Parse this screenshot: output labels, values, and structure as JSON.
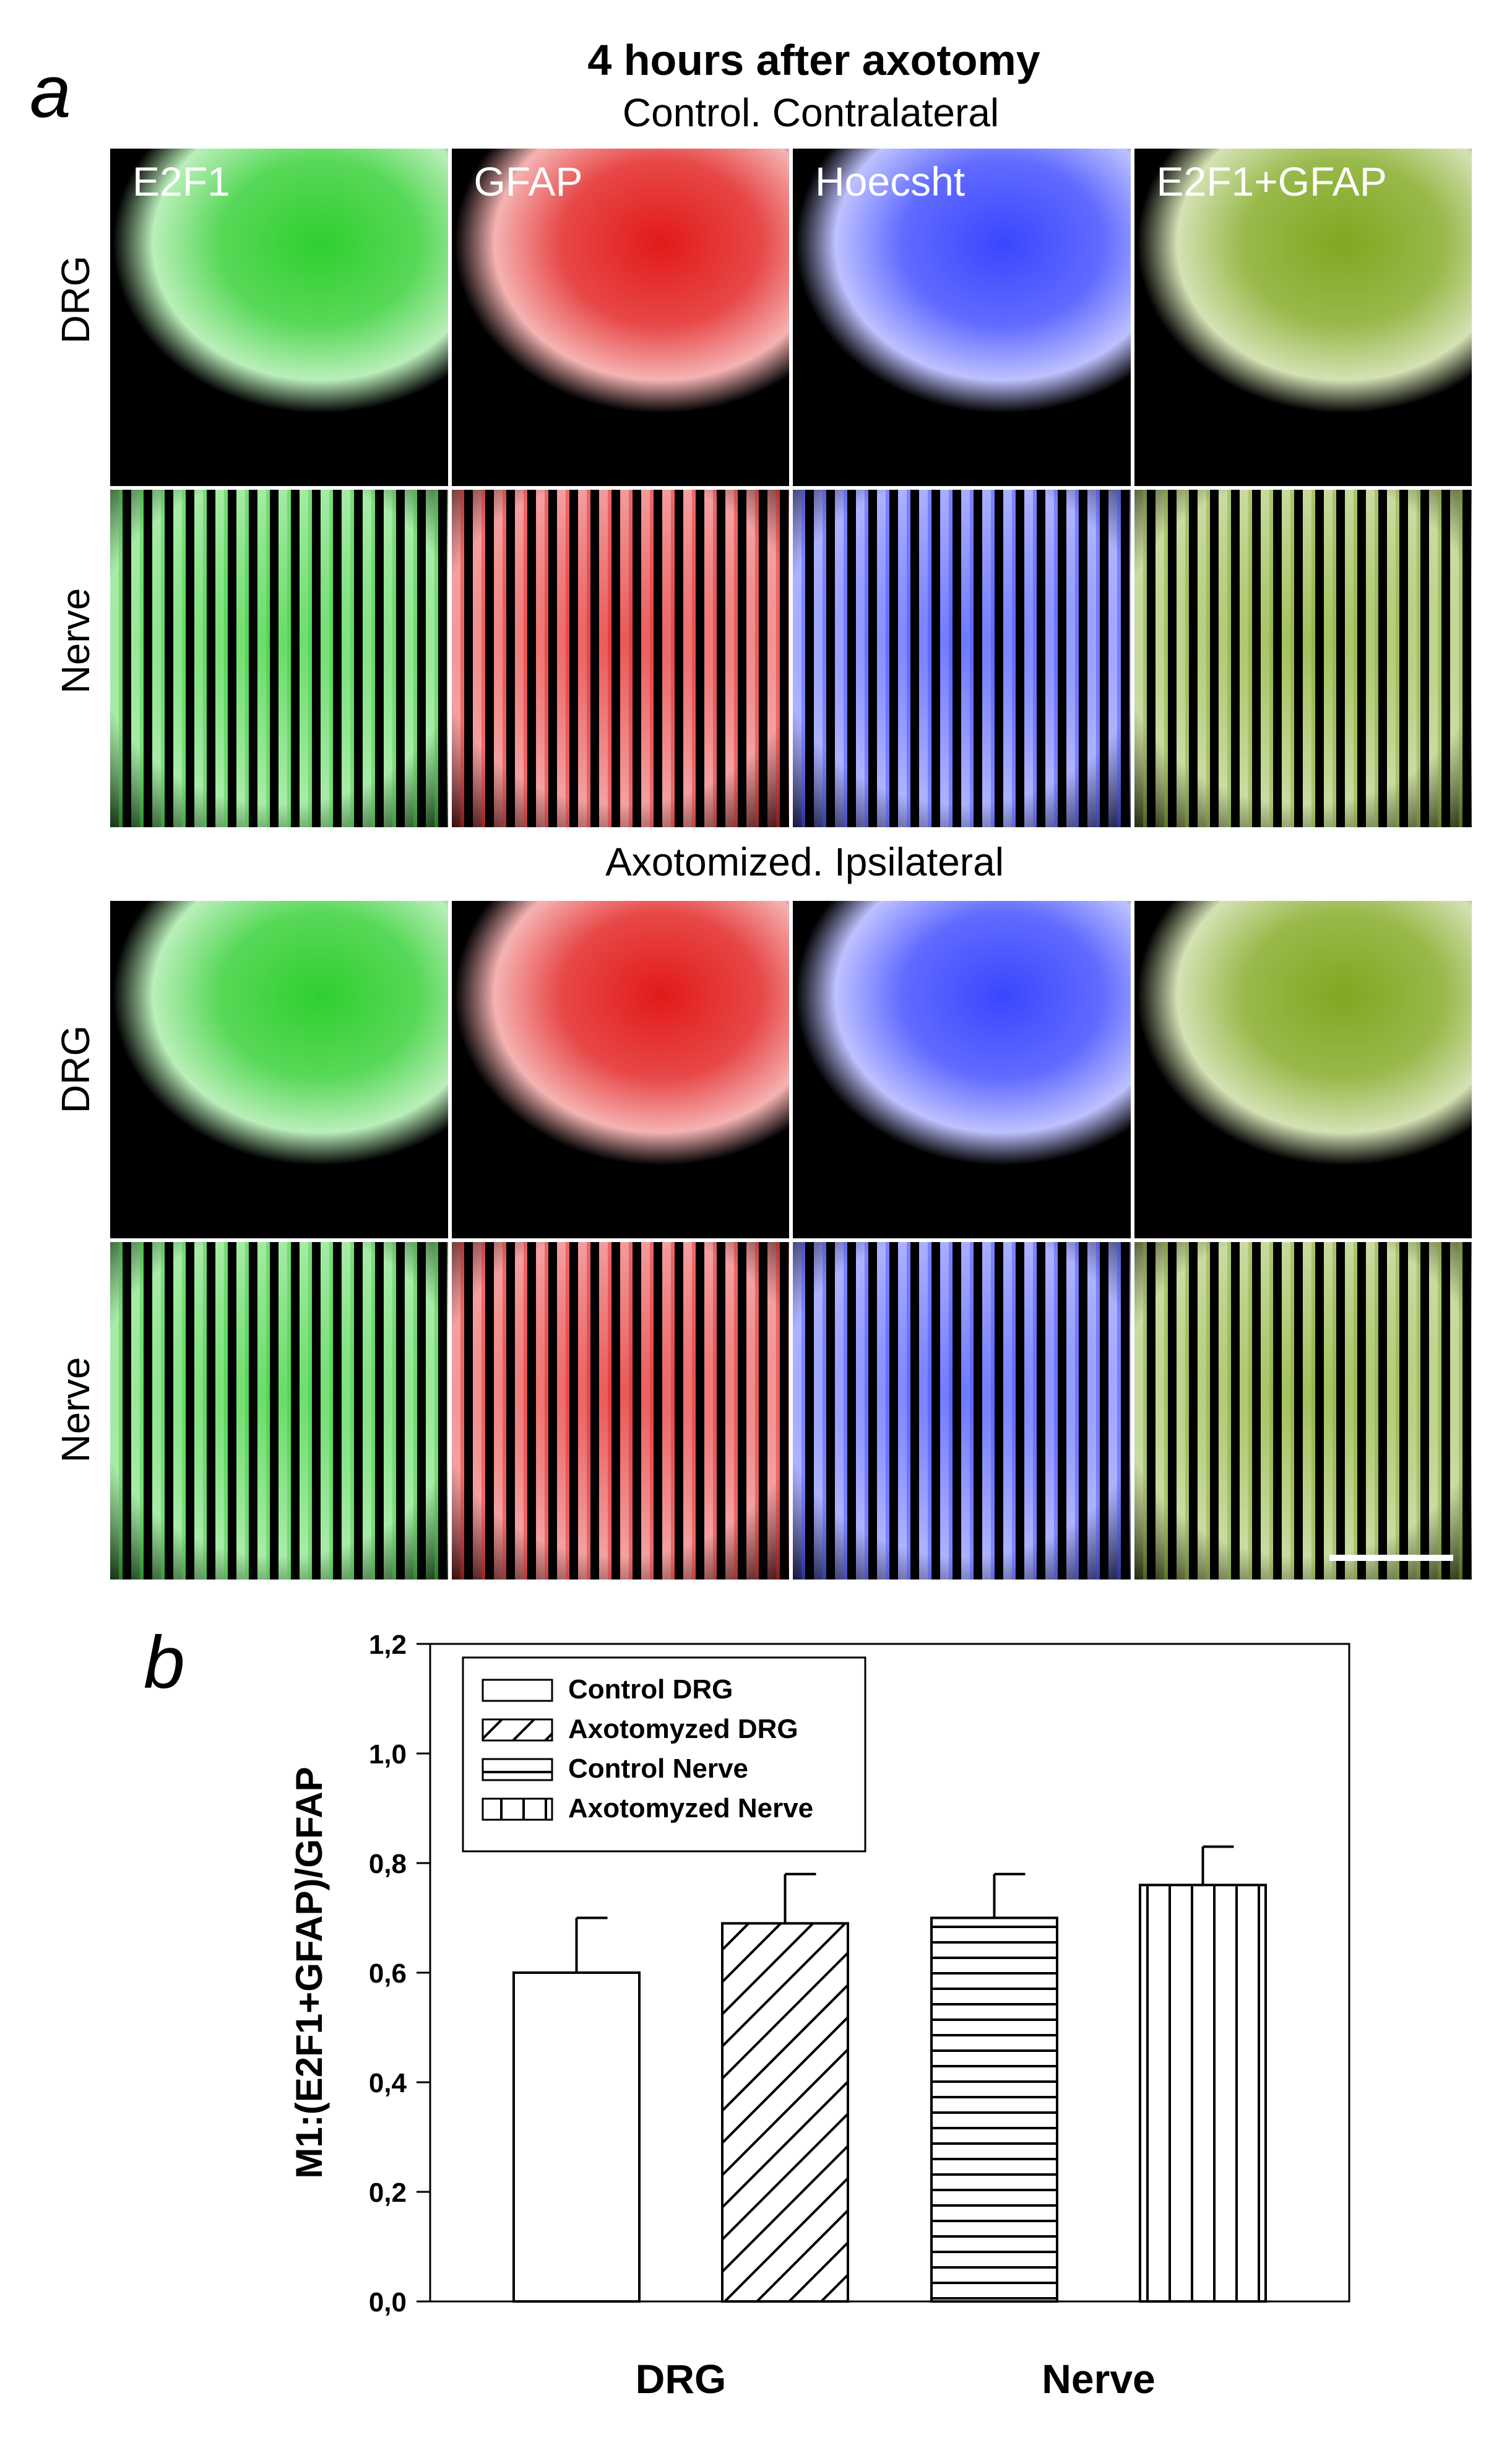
{
  "panel_a": {
    "letter": "a",
    "title": "4 hours after axotomy",
    "sections": [
      {
        "heading": "Control. Contralateral",
        "rows": [
          {
            "label": "DRG"
          },
          {
            "label": "Nerve"
          }
        ]
      },
      {
        "heading": "Axotomized. Ipsilateral",
        "rows": [
          {
            "label": "DRG"
          },
          {
            "label": "Nerve"
          }
        ]
      }
    ],
    "channels": [
      "E2F1",
      "GFAP",
      "Hoecsht",
      "E2F1+GFAP"
    ],
    "channel_colors": [
      "#2fcf2f",
      "#e21a1a",
      "#3a46ff",
      "#7fa81f"
    ]
  },
  "panel_b": {
    "letter": "b"
  },
  "chart_data": {
    "type": "bar",
    "ylabel": "M1:(E2F1+GFAP)/GFAP",
    "ylim": [
      0,
      1.2
    ],
    "yticks": [
      "0,0",
      "0,2",
      "0,4",
      "0,6",
      "0,8",
      "1,0",
      "1,2"
    ],
    "groups": [
      "DRG",
      "Nerve"
    ],
    "series": [
      {
        "name": "Control DRG",
        "value": 0.6,
        "error": 0.1,
        "group": "DRG",
        "pattern": "none"
      },
      {
        "name": "Axotomyzed DRG",
        "value": 0.69,
        "error": 0.09,
        "group": "DRG",
        "pattern": "diagonal"
      },
      {
        "name": "Control Nerve",
        "value": 0.7,
        "error": 0.08,
        "group": "Nerve",
        "pattern": "horizontal"
      },
      {
        "name": "Axotomyzed Nerve",
        "value": 0.76,
        "error": 0.07,
        "group": "Nerve",
        "pattern": "vertical"
      }
    ],
    "legend_position": "top-left"
  }
}
